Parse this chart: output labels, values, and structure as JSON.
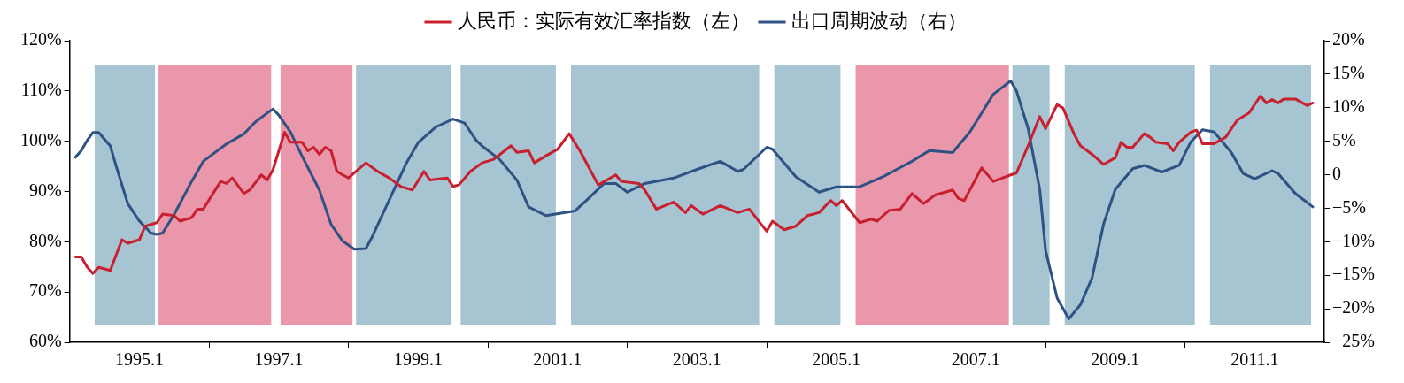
{
  "chart_data": {
    "type": "line",
    "legend": "top",
    "grid": false,
    "marker": "none",
    "line_style": "solid",
    "xlim": [
      "1994-01",
      "2012-01"
    ],
    "xticks": [
      {
        "value": "1995-01",
        "label": "1995.1"
      },
      {
        "value": "1996-01",
        "label": null
      },
      {
        "value": "1997-01",
        "label": "1997.1"
      },
      {
        "value": "1998-01",
        "label": null
      },
      {
        "value": "1999-01",
        "label": "1999.1"
      },
      {
        "value": "2000-01",
        "label": null
      },
      {
        "value": "2001-01",
        "label": "2001.1"
      },
      {
        "value": "2002-01",
        "label": null
      },
      {
        "value": "2003-01",
        "label": "2003.1"
      },
      {
        "value": "2004-01",
        "label": null
      },
      {
        "value": "2005-01",
        "label": "2005.1"
      },
      {
        "value": "2006-01",
        "label": null
      },
      {
        "value": "2007-01",
        "label": "2007.1"
      },
      {
        "value": "2008-01",
        "label": null
      },
      {
        "value": "2009-01",
        "label": "2009.1"
      },
      {
        "value": "2010-01",
        "label": null
      },
      {
        "value": "2011-01",
        "label": "2011.1"
      }
    ],
    "ylim": [
      60,
      120
    ],
    "yticks": [
      {
        "value": 60,
        "label": "60%"
      },
      {
        "value": 70,
        "label": "70%"
      },
      {
        "value": 80,
        "label": "80%"
      },
      {
        "value": 90,
        "label": "90%"
      },
      {
        "value": 100,
        "label": "100%"
      },
      {
        "value": 110,
        "label": "110%"
      },
      {
        "value": 120,
        "label": "120%"
      }
    ],
    "y2lim": [
      -25,
      20
    ],
    "y2ticks": [
      {
        "value": -25,
        "label": "−25%"
      },
      {
        "value": -20,
        "label": "−20%"
      },
      {
        "value": -15,
        "label": "−15%"
      },
      {
        "value": -10,
        "label": "−10%"
      },
      {
        "value": -5,
        "label": "−5%"
      },
      0,
      {
        "value": 5,
        "label": "5%"
      },
      {
        "value": 10,
        "label": "10%"
      },
      {
        "value": 15,
        "label": "15%"
      },
      {
        "value": 20,
        "label": "20%"
      }
    ],
    "bands": [
      {
        "axis": "x",
        "from": "1994-05",
        "to": "1995-04",
        "color": "#a6c4d2"
      },
      {
        "axis": "x",
        "from": "1995-04",
        "to": "1996-12",
        "color": "#eb97ab"
      },
      {
        "axis": "x",
        "from": "1997-01",
        "to": "1998-02",
        "color": "#eb97ab"
      },
      {
        "axis": "x",
        "from": "1998-02",
        "to": "1999-07",
        "color": "#a6c4d2"
      },
      {
        "axis": "x",
        "from": "1999-08",
        "to": "2001-01",
        "color": "#a6c4d2"
      },
      {
        "axis": "x",
        "from": "2001-03",
        "to": "2003-12",
        "color": "#a6c4d2"
      },
      {
        "axis": "x",
        "from": "2004-02",
        "to": "2005-02",
        "color": "#a6c4d2"
      },
      {
        "axis": "x",
        "from": "2005-04",
        "to": "2007-07",
        "color": "#eb97ab"
      },
      {
        "axis": "x",
        "from": "2007-07",
        "to": "2008-02",
        "color": "#a6c4d2"
      },
      {
        "axis": "x",
        "from": "2008-04",
        "to": "2010-03",
        "color": "#a6c4d2"
      },
      {
        "axis": "x",
        "from": "2010-05",
        "to": "2011-11",
        "color": "#a6c4d2"
      }
    ],
    "series": [
      {
        "name": "人民币：实际有效汇率指数（左）",
        "color": "#c8202f",
        "x": [
          "1994-02",
          "1994-03",
          "1994-04",
          "1994-05",
          "1994-06",
          "1994-08",
          "1994-10",
          "1994-11",
          "1995-01",
          "1995-02",
          "1995-04",
          "1995-05",
          "1995-07",
          "1995-08",
          "1995-10",
          "1995-11",
          "1995-12",
          "1996-03",
          "1996-04",
          "1996-05",
          "1996-07",
          "1996-08",
          "1996-10",
          "1996-11",
          "1996-12",
          "1997-02",
          "1997-03",
          "1997-05",
          "1997-06",
          "1997-07",
          "1997-08",
          "1997-09",
          "1997-10",
          "1997-11",
          "1997-12",
          "1998-01",
          "1998-04",
          "1998-06",
          "1998-08",
          "1998-10",
          "1998-12",
          "1999-02",
          "1999-03",
          "1999-06",
          "1999-07",
          "1999-08",
          "1999-10",
          "1999-12",
          "2000-02",
          "2000-05",
          "2000-06",
          "2000-08",
          "2000-09",
          "2000-11",
          "2001-01",
          "2001-03",
          "2001-05",
          "2001-08",
          "2001-11",
          "2001-12",
          "2002-03",
          "2002-04",
          "2002-06",
          "2002-09",
          "2002-11",
          "2002-12",
          "2003-02",
          "2003-05",
          "2003-08",
          "2003-10",
          "2004-01",
          "2004-02",
          "2004-04",
          "2004-06",
          "2004-08",
          "2004-10",
          "2004-12",
          "2005-01",
          "2005-02",
          "2005-05",
          "2005-07",
          "2005-08",
          "2005-10",
          "2005-12",
          "2006-02",
          "2006-04",
          "2006-06",
          "2006-09",
          "2006-10",
          "2006-11",
          "2007-02",
          "2007-04",
          "2007-07",
          "2007-08",
          "2007-10",
          "2007-12",
          "2008-01",
          "2008-03",
          "2008-04",
          "2008-06",
          "2008-07",
          "2008-09",
          "2008-11",
          "2009-01",
          "2009-02",
          "2009-03",
          "2009-04",
          "2009-06",
          "2009-07",
          "2009-08",
          "2009-10",
          "2009-11",
          "2009-12",
          "2010-02",
          "2010-03",
          "2010-04",
          "2010-06",
          "2010-08",
          "2010-10",
          "2010-12",
          "2011-02",
          "2011-03",
          "2011-04",
          "2011-05",
          "2011-06",
          "2011-08",
          "2011-10",
          "2011-11"
        ],
        "values": [
          77.0,
          77.0,
          75.0,
          73.7,
          74.9,
          74.3,
          80.4,
          79.7,
          80.4,
          83.1,
          83.8,
          85.5,
          85.2,
          84.1,
          84.8,
          86.5,
          86.5,
          92.0,
          91.6,
          92.7,
          89.6,
          90.3,
          93.3,
          92.3,
          94.3,
          101.8,
          99.8,
          99.8,
          98.1,
          98.8,
          97.4,
          98.8,
          98.1,
          94.0,
          93.3,
          92.7,
          95.7,
          94.0,
          92.7,
          91.0,
          90.3,
          94.0,
          92.3,
          92.7,
          91.0,
          91.3,
          94.0,
          95.7,
          96.4,
          99.1,
          97.8,
          98.1,
          95.7,
          97.1,
          98.4,
          101.5,
          97.8,
          91.3,
          93.3,
          92.0,
          91.6,
          90.3,
          86.5,
          87.9,
          85.8,
          87.2,
          85.5,
          87.2,
          85.8,
          86.5,
          82.1,
          84.1,
          82.4,
          83.1,
          85.2,
          85.8,
          88.2,
          87.2,
          88.2,
          83.8,
          84.5,
          84.1,
          86.2,
          86.5,
          89.6,
          87.6,
          89.3,
          90.3,
          88.6,
          88.2,
          94.7,
          92.0,
          93.3,
          93.7,
          99.1,
          104.9,
          102.5,
          107.3,
          106.6,
          101.2,
          99.1,
          97.4,
          95.4,
          96.7,
          99.8,
          98.8,
          98.8,
          101.5,
          100.8,
          99.8,
          99.5,
          98.1,
          99.8,
          101.8,
          102.2,
          99.5,
          99.5,
          100.8,
          104.2,
          105.6,
          109.0,
          107.6,
          108.3,
          107.6,
          108.4,
          108.4,
          107.1,
          107.6
        ]
      },
      {
        "name": "出口周期波动（右）",
        "color": "#2e5283",
        "axis": "y2",
        "x": [
          "1994-02",
          "1994-03",
          "1994-04",
          "1994-05",
          "1994-06",
          "1994-08",
          "1994-09",
          "1994-11",
          "1995-01",
          "1995-03",
          "1995-04",
          "1995-05",
          "1995-07",
          "1995-10",
          "1995-12",
          "1996-04",
          "1996-07",
          "1996-09",
          "1996-11",
          "1996-12",
          "1997-01",
          "1997-03",
          "1997-05",
          "1997-08",
          "1997-10",
          "1997-12",
          "1998-02",
          "1998-04",
          "1998-05",
          "1998-08",
          "1998-11",
          "1999-01",
          "1999-04",
          "1999-07",
          "1999-09",
          "1999-11",
          "1999-12",
          "2000-03",
          "2000-06",
          "2000-08",
          "2000-11",
          "2001-04",
          "2001-06",
          "2001-09",
          "2001-11",
          "2002-01",
          "2002-04",
          "2002-09",
          "2003-01",
          "2003-05",
          "2003-08",
          "2003-09",
          "2004-01",
          "2004-02",
          "2004-06",
          "2004-10",
          "2005-01",
          "2005-05",
          "2005-09",
          "2006-02",
          "2006-05",
          "2006-09",
          "2006-12",
          "2007-04",
          "2007-07",
          "2007-08",
          "2007-10",
          "2007-12",
          "2008-01",
          "2008-03",
          "2008-05",
          "2008-07",
          "2008-09",
          "2008-11",
          "2009-01",
          "2009-04",
          "2009-06",
          "2009-09",
          "2009-12",
          "2010-02",
          "2010-04",
          "2010-06",
          "2010-09",
          "2010-11",
          "2011-01",
          "2011-04",
          "2011-05",
          "2011-08",
          "2011-11"
        ],
        "values": [
          2.6,
          3.6,
          5.1,
          6.3,
          6.3,
          4.3,
          1.3,
          -4.3,
          -6.9,
          -8.7,
          -8.9,
          -8.7,
          -5.9,
          -1.0,
          2.0,
          4.6,
          6.1,
          7.9,
          9.2,
          9.8,
          8.9,
          6.4,
          2.8,
          -2.3,
          -7.4,
          -9.9,
          -11.1,
          -11.0,
          -9.4,
          -3.8,
          1.8,
          4.8,
          7.1,
          8.3,
          7.7,
          5.1,
          4.3,
          2.3,
          -0.8,
          -4.8,
          -6.1,
          -5.4,
          -3.8,
          -1.3,
          -1.3,
          -2.6,
          -1.3,
          -0.5,
          0.8,
          2.0,
          0.5,
          0.8,
          4.1,
          3.8,
          -0.3,
          -2.6,
          -1.8,
          -1.8,
          -0.3,
          2.0,
          3.6,
          3.3,
          6.4,
          12.0,
          14.0,
          12.5,
          6.9,
          -2.2,
          -11.3,
          -18.4,
          -21.5,
          -19.4,
          -15.4,
          -7.3,
          -2.2,
          0.9,
          1.4,
          0.4,
          1.4,
          4.9,
          6.7,
          6.4,
          3.3,
          0.2,
          -0.6,
          0.6,
          0.2,
          -2.8,
          -4.8
        ]
      }
    ]
  }
}
